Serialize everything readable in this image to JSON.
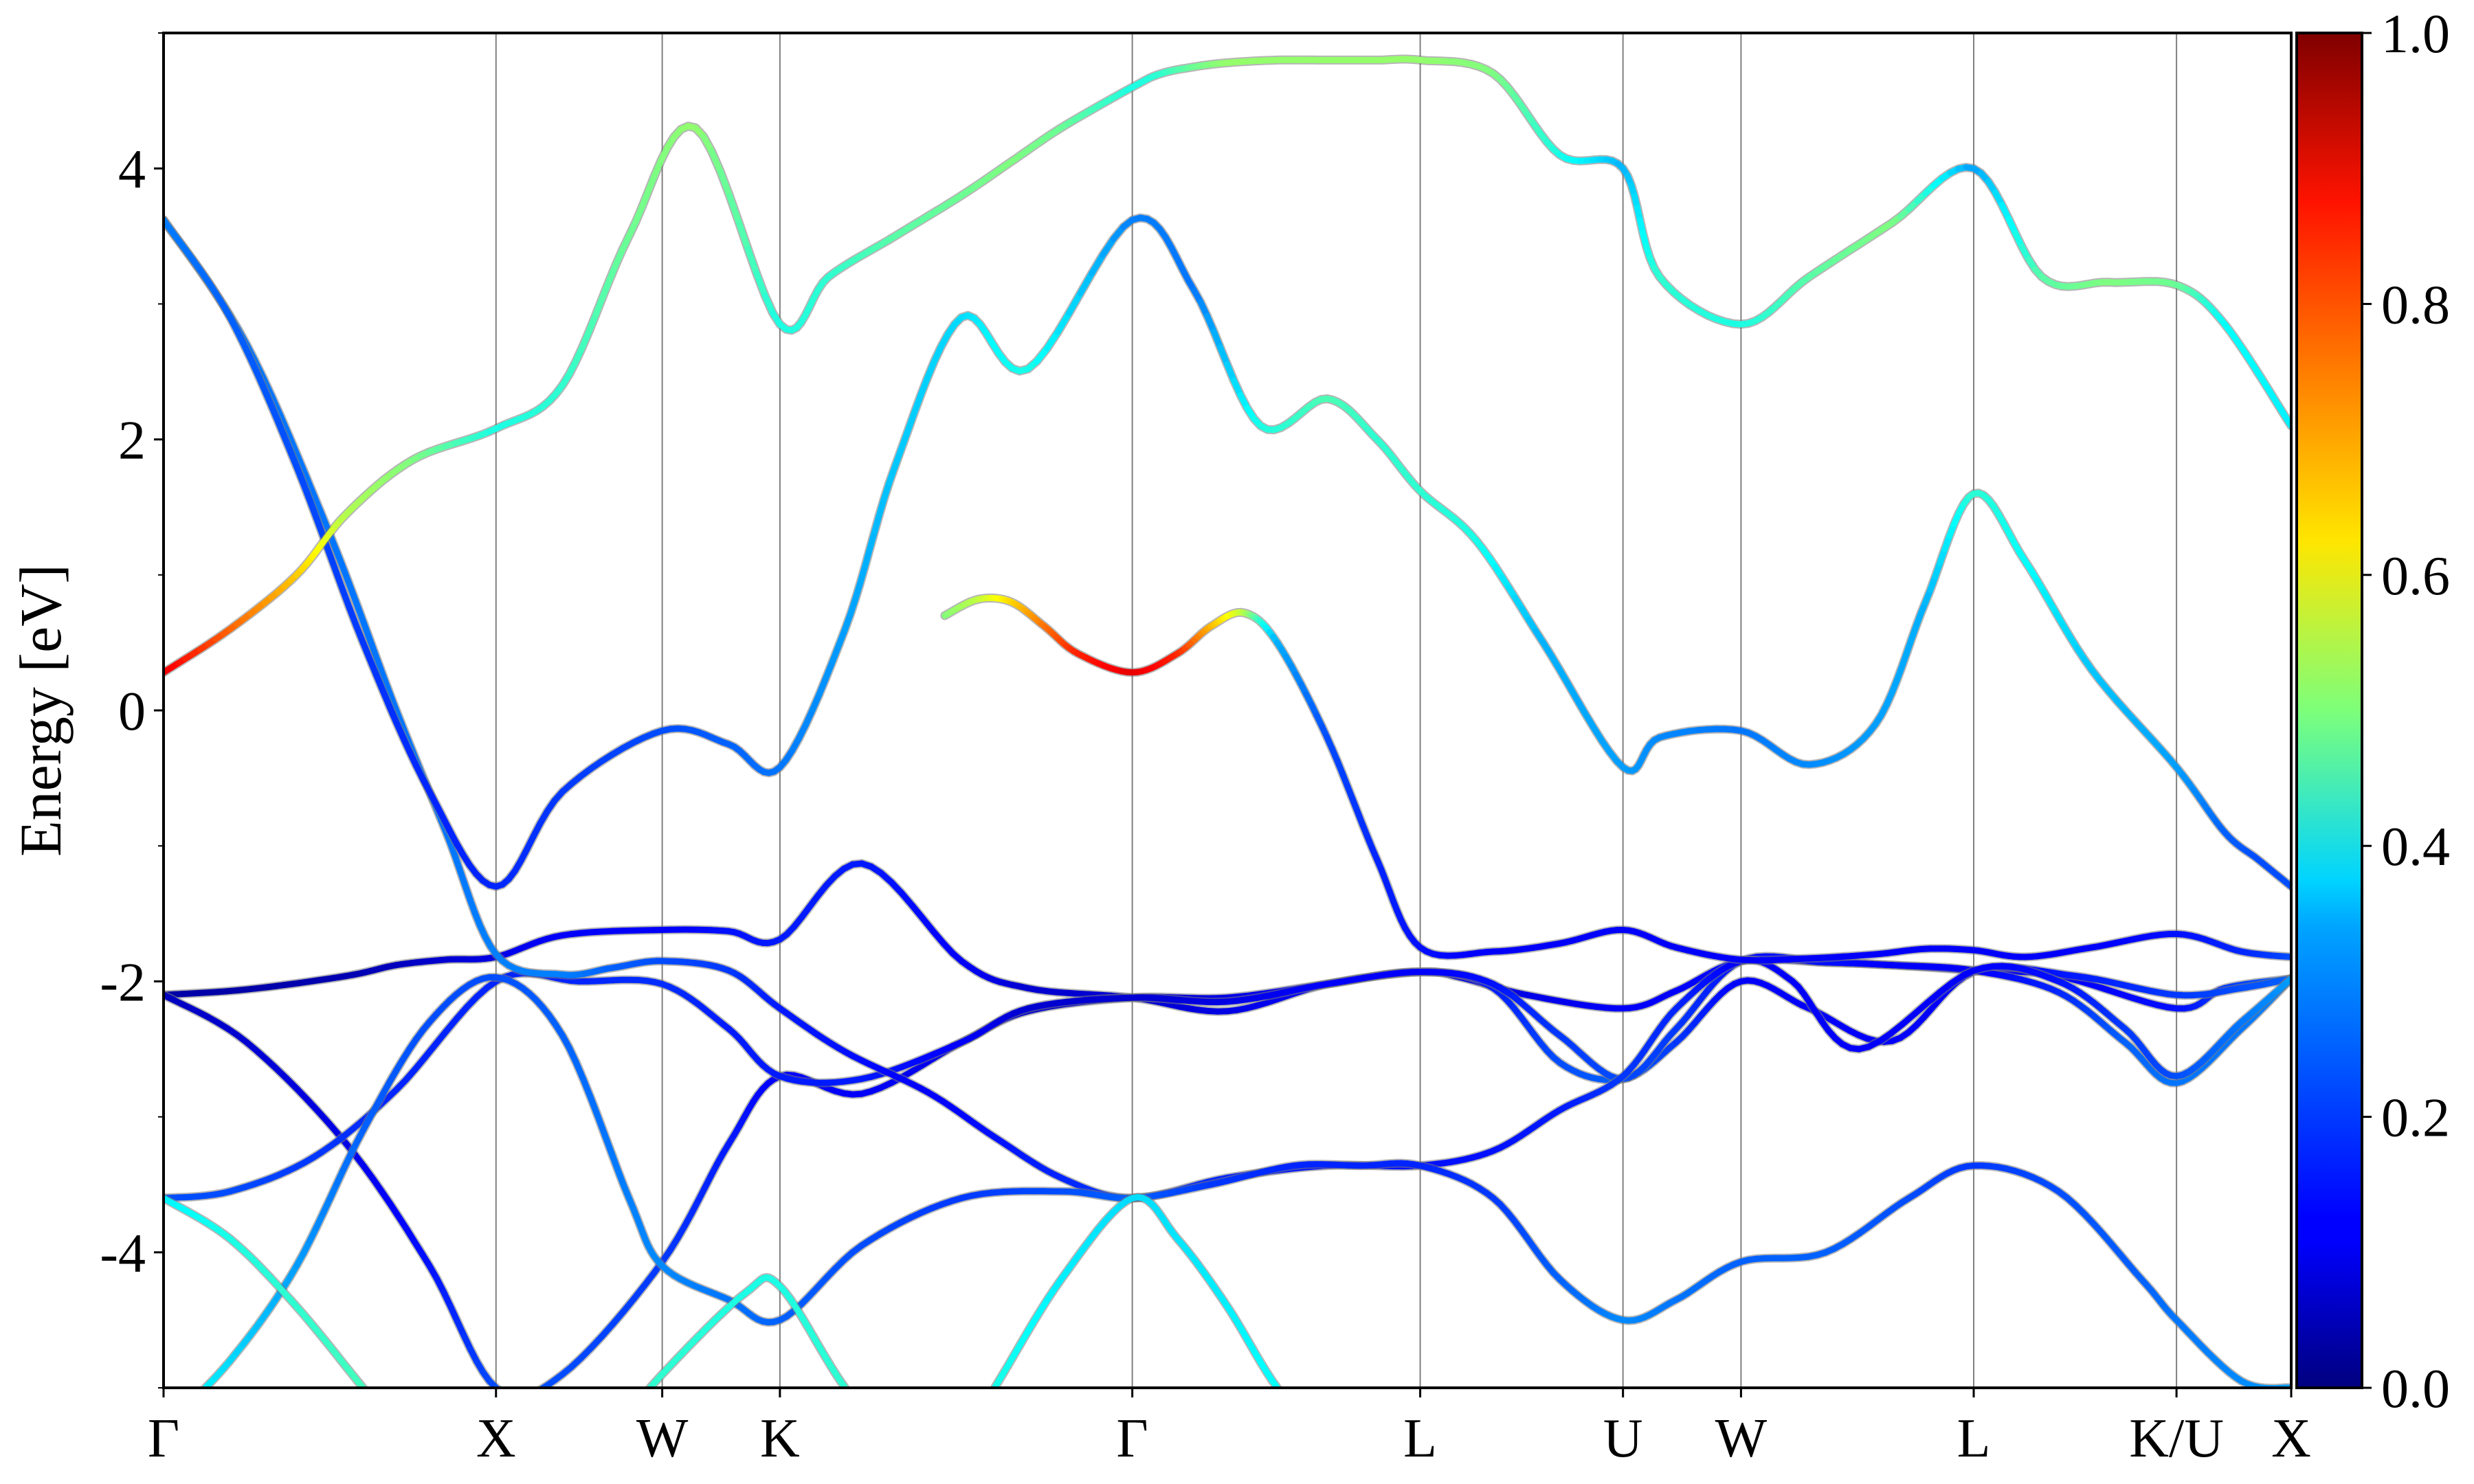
{
  "chart_data": {
    "type": "line",
    "title": "",
    "xlabel": "",
    "ylabel": "Energy [eV]",
    "ylim": [
      -5,
      5
    ],
    "y_ticks": [
      "-4",
      "-2",
      "0",
      "2",
      "4"
    ],
    "y_tick_values": [
      -4,
      -2,
      0,
      2,
      4
    ],
    "high_symmetry_labels": [
      "Γ",
      "X",
      "W",
      "K",
      "Γ",
      "L",
      "U",
      "W",
      "L",
      "K/U",
      "X"
    ],
    "high_symmetry_x": [
      0,
      1.0,
      1.5,
      1.854,
      2.914,
      3.78,
      4.39,
      4.745,
      5.445,
      6.055,
      6.4
    ],
    "xlim": [
      0,
      6.4
    ],
    "colorbar": {
      "range": [
        0,
        1
      ],
      "ticks": [
        "0.0",
        "0.2",
        "0.4",
        "0.6",
        "0.8",
        "1.0"
      ],
      "tick_values": [
        0,
        0.2,
        0.4,
        0.6,
        0.8,
        1.0
      ],
      "colormap": "jet"
    },
    "series": [
      {
        "x": [
          0,
          0.25,
          0.55,
          0.7,
          0.85,
          1.0,
          1.2,
          1.5,
          1.7,
          1.854,
          2.1,
          2.4,
          2.6,
          2.914,
          3.2,
          3.5,
          3.78,
          3.9,
          4.1,
          4.39,
          4.55,
          4.745,
          5.0,
          5.2,
          5.445,
          5.7,
          6.055,
          6.2,
          6.4
        ],
        "y": [
          -2.1,
          -2.06,
          -1.96,
          -1.88,
          -1.84,
          -1.82,
          -1.66,
          -1.62,
          -1.63,
          -1.69,
          -1.13,
          -1.85,
          -2.05,
          -2.12,
          -2.22,
          -2.02,
          -1.93,
          -1.97,
          -2.1,
          -2.2,
          -2.07,
          -1.85,
          -1.86,
          -1.88,
          -1.92,
          -1.96,
          -2.2,
          -2.05,
          -1.98
        ],
        "w": [
          0.04,
          0.04,
          0.05,
          0.06,
          0.08,
          0.1,
          0.12,
          0.12,
          0.14,
          0.15,
          0.15,
          0.12,
          0.08,
          0.08,
          0.1,
          0.12,
          0.12,
          0.1,
          0.1,
          0.12,
          0.12,
          0.14,
          0.14,
          0.12,
          0.12,
          0.12,
          0.14,
          0.18,
          0.22
        ]
      },
      {
        "x": [
          0,
          0.25,
          0.55,
          0.8,
          1.0,
          1.2,
          1.5,
          1.7,
          1.854,
          2.1,
          2.4,
          2.6,
          2.914,
          3.2,
          3.5,
          3.78,
          4.0,
          4.2,
          4.39,
          4.55,
          4.745,
          4.95,
          5.2,
          5.445,
          5.75,
          6.055,
          6.25,
          6.4
        ],
        "y": [
          -2.1,
          -2.45,
          -3.2,
          -4.1,
          -5.0,
          -4.9,
          -4.07,
          -3.2,
          -2.7,
          -2.83,
          -2.45,
          -2.22,
          -2.12,
          -2.12,
          -2.02,
          -1.93,
          -2.05,
          -2.6,
          -2.72,
          -2.45,
          -2.0,
          -2.2,
          -2.44,
          -1.93,
          -1.96,
          -2.1,
          -2.05,
          -1.98
        ],
        "w": [
          0.06,
          0.08,
          0.1,
          0.14,
          0.2,
          0.2,
          0.18,
          0.15,
          0.12,
          0.12,
          0.1,
          0.08,
          0.08,
          0.1,
          0.12,
          0.12,
          0.15,
          0.2,
          0.22,
          0.18,
          0.12,
          0.12,
          0.12,
          0.12,
          0.15,
          0.18,
          0.2,
          0.22
        ]
      },
      {
        "x": [
          0,
          0.2,
          0.45,
          0.7,
          1.0,
          1.25,
          1.5,
          1.7,
          1.854,
          2.1,
          2.4,
          2.6,
          2.914,
          3.2,
          3.5,
          3.78,
          4.0,
          4.2,
          4.39,
          4.55,
          4.745,
          5.0,
          5.2,
          5.445,
          5.7,
          5.9,
          6.055,
          6.25,
          6.4
        ],
        "y": [
          -3.6,
          -3.55,
          -3.3,
          -2.8,
          -2.0,
          -2.0,
          -2.02,
          -2.35,
          -2.7,
          -2.72,
          -2.45,
          -2.2,
          -2.12,
          -2.15,
          -2.02,
          -1.93,
          -2.02,
          -2.4,
          -2.72,
          -2.35,
          -1.85,
          -1.86,
          -1.88,
          -1.92,
          -2.08,
          -2.45,
          -2.75,
          -2.35,
          -1.98
        ],
        "w": [
          0.2,
          0.2,
          0.18,
          0.16,
          0.16,
          0.16,
          0.17,
          0.15,
          0.15,
          0.15,
          0.12,
          0.08,
          0.08,
          0.1,
          0.12,
          0.12,
          0.14,
          0.18,
          0.2,
          0.18,
          0.14,
          0.14,
          0.12,
          0.12,
          0.16,
          0.22,
          0.24,
          0.24,
          0.26
        ]
      },
      {
        "x": [
          0,
          0.25,
          0.5,
          0.7,
          0.85,
          1.0,
          1.2,
          1.35,
          1.5,
          1.7,
          1.854,
          2.05,
          2.3,
          2.5,
          2.7,
          2.914,
          3.2,
          3.5,
          3.78,
          4.0,
          4.2,
          4.39,
          4.55,
          4.745,
          4.9,
          5.1,
          5.445,
          5.7,
          5.9,
          6.055,
          6.25,
          6.4
        ],
        "y": [
          3.62,
          2.7,
          1.3,
          0.0,
          -0.9,
          -1.8,
          -1.95,
          -1.9,
          -1.85,
          -1.92,
          -2.2,
          -2.52,
          -2.82,
          -3.15,
          -3.45,
          -3.6,
          -3.45,
          -3.36,
          -3.36,
          -3.25,
          -2.95,
          -2.7,
          -2.2,
          -1.85,
          -2.0,
          -2.5,
          -1.92,
          -2.0,
          -2.35,
          -2.7,
          -2.3,
          -1.98
        ],
        "w": [
          0.25,
          0.24,
          0.24,
          0.24,
          0.24,
          0.25,
          0.25,
          0.22,
          0.2,
          0.18,
          0.15,
          0.14,
          0.12,
          0.14,
          0.16,
          0.18,
          0.16,
          0.14,
          0.14,
          0.14,
          0.15,
          0.18,
          0.16,
          0.12,
          0.12,
          0.12,
          0.12,
          0.14,
          0.18,
          0.2,
          0.24,
          0.28
        ]
      },
      {
        "x": [
          0,
          0.2,
          0.4,
          0.6,
          0.8,
          1.0,
          1.2,
          1.4,
          1.5,
          1.7,
          1.854,
          2.1,
          2.4,
          2.7,
          2.914,
          3.15,
          3.4,
          3.6,
          3.78,
          4.0,
          4.2,
          4.39,
          4.55,
          4.745,
          5.0,
          5.25,
          5.445,
          5.7,
          5.95,
          6.055,
          6.25,
          6.4
        ],
        "y": [
          -5.3,
          -4.8,
          -4.1,
          -3.1,
          -2.3,
          -1.97,
          -2.4,
          -3.6,
          -4.1,
          -4.35,
          -4.5,
          -3.95,
          -3.6,
          -3.55,
          -3.6,
          -3.5,
          -3.36,
          -3.36,
          -3.36,
          -3.6,
          -4.2,
          -4.5,
          -4.35,
          -4.07,
          -4.0,
          -3.6,
          -3.36,
          -3.55,
          -4.2,
          -4.5,
          -4.95,
          -5.0
        ],
        "w": [
          0.4,
          0.34,
          0.28,
          0.22,
          0.2,
          0.2,
          0.22,
          0.25,
          0.26,
          0.24,
          0.22,
          0.2,
          0.18,
          0.2,
          0.22,
          0.18,
          0.16,
          0.16,
          0.16,
          0.18,
          0.22,
          0.26,
          0.24,
          0.22,
          0.22,
          0.2,
          0.18,
          0.2,
          0.22,
          0.24,
          0.26,
          0.28
        ]
      },
      {
        "x": [
          0,
          0.2,
          0.4,
          0.6,
          0.8,
          1.0,
          1.25,
          1.5,
          1.75,
          1.854,
          2.05,
          2.3,
          2.5,
          2.7,
          2.914,
          3.05,
          3.2,
          3.35,
          3.55
        ],
        "y": [
          -3.6,
          -3.9,
          -4.4,
          -5.0,
          -5.6,
          -6.0,
          -5.6,
          -4.9,
          -4.3,
          -4.25,
          -5.0,
          -5.8,
          -5.0,
          -4.2,
          -3.6,
          -3.9,
          -4.4,
          -5.0,
          -5.6
        ],
        "w": [
          0.36,
          0.4,
          0.42,
          0.44,
          0.45,
          0.45,
          0.44,
          0.42,
          0.4,
          0.4,
          0.42,
          0.44,
          0.4,
          0.36,
          0.34,
          0.35,
          0.36,
          0.38,
          0.4
        ]
      },
      {
        "x": [
          0,
          0.2,
          0.4,
          0.6,
          0.8,
          1.0,
          1.2,
          1.5,
          1.7,
          1.854,
          2.05,
          2.2,
          2.4,
          2.6,
          2.914,
          3.1,
          3.3,
          3.5,
          3.65,
          3.78,
          3.95,
          4.15,
          4.39,
          4.5,
          4.745,
          4.95,
          5.15,
          5.3,
          5.445,
          5.6,
          5.8,
          6.055,
          6.2,
          6.3,
          6.4
        ],
        "y": [
          3.62,
          2.9,
          1.8,
          0.5,
          -0.6,
          -1.3,
          -0.6,
          -0.15,
          -0.25,
          -0.42,
          0.6,
          1.8,
          2.9,
          2.52,
          3.62,
          3.1,
          2.1,
          2.3,
          2.0,
          1.62,
          1.25,
          0.5,
          -0.42,
          -0.2,
          -0.15,
          -0.4,
          -0.1,
          0.8,
          1.6,
          1.1,
          0.3,
          -0.42,
          -0.9,
          -1.1,
          -1.3
        ],
        "w": [
          0.25,
          0.22,
          0.2,
          0.18,
          0.16,
          0.16,
          0.18,
          0.2,
          0.22,
          0.24,
          0.28,
          0.32,
          0.34,
          0.4,
          0.25,
          0.24,
          0.4,
          0.45,
          0.42,
          0.42,
          0.4,
          0.3,
          0.28,
          0.26,
          0.24,
          0.26,
          0.28,
          0.3,
          0.42,
          0.38,
          0.32,
          0.28,
          0.22,
          0.2,
          0.2
        ]
      },
      {
        "x": [
          0,
          0.2,
          0.4,
          0.55,
          0.75,
          1.0,
          1.2,
          1.4,
          1.6,
          1.854,
          2.0,
          2.2,
          2.4,
          2.55,
          2.7,
          2.914,
          3.0,
          3.1,
          3.2,
          3.35,
          3.5,
          3.65,
          3.78,
          4.0,
          4.2,
          4.39,
          4.5,
          4.745,
          4.95,
          5.2,
          5.445,
          5.65,
          5.85,
          6.055,
          6.2,
          6.4
        ],
        "y": [
          0.28,
          0.6,
          1.0,
          1.45,
          1.85,
          2.08,
          2.4,
          3.5,
          4.3,
          2.85,
          3.2,
          3.5,
          3.8,
          4.05,
          4.3,
          4.6,
          4.7,
          4.75,
          4.78,
          4.8,
          4.8,
          4.8,
          4.8,
          4.7,
          4.1,
          4.0,
          3.2,
          2.85,
          3.2,
          3.6,
          4.0,
          3.2,
          3.16,
          3.14,
          2.85,
          2.1
        ],
        "w": [
          0.9,
          0.78,
          0.68,
          0.55,
          0.5,
          0.4,
          0.42,
          0.48,
          0.52,
          0.4,
          0.42,
          0.46,
          0.48,
          0.5,
          0.48,
          0.4,
          0.42,
          0.48,
          0.52,
          0.52,
          0.52,
          0.52,
          0.52,
          0.5,
          0.4,
          0.3,
          0.42,
          0.4,
          0.46,
          0.5,
          0.28,
          0.46,
          0.5,
          0.48,
          0.38,
          0.36
        ]
      },
      {
        "x": [
          2.35,
          2.45,
          2.55,
          2.65,
          2.75,
          2.914,
          3.05,
          3.15,
          3.25,
          3.35,
          3.5,
          3.65,
          3.78,
          4.0,
          4.2,
          4.39,
          4.55,
          4.745,
          4.95,
          5.15,
          5.3,
          5.445,
          5.6,
          5.8,
          6.055,
          6.25,
          6.4
        ],
        "y": [
          0.7,
          0.82,
          0.8,
          0.62,
          0.42,
          0.28,
          0.42,
          0.62,
          0.72,
          0.5,
          -0.2,
          -1.1,
          -1.75,
          -1.78,
          -1.72,
          -1.62,
          -1.75,
          -1.84,
          -1.83,
          -1.8,
          -1.76,
          -1.77,
          -1.82,
          -1.75,
          -1.65,
          -1.78,
          -1.82
        ],
        "w": [
          0.5,
          0.56,
          0.66,
          0.76,
          0.84,
          0.9,
          0.84,
          0.7,
          0.56,
          0.3,
          0.2,
          0.16,
          0.14,
          0.12,
          0.12,
          0.12,
          0.12,
          0.12,
          0.12,
          0.12,
          0.12,
          0.12,
          0.12,
          0.12,
          0.14,
          0.16,
          0.2
        ]
      }
    ],
    "colored_by": "colorbar value"
  }
}
